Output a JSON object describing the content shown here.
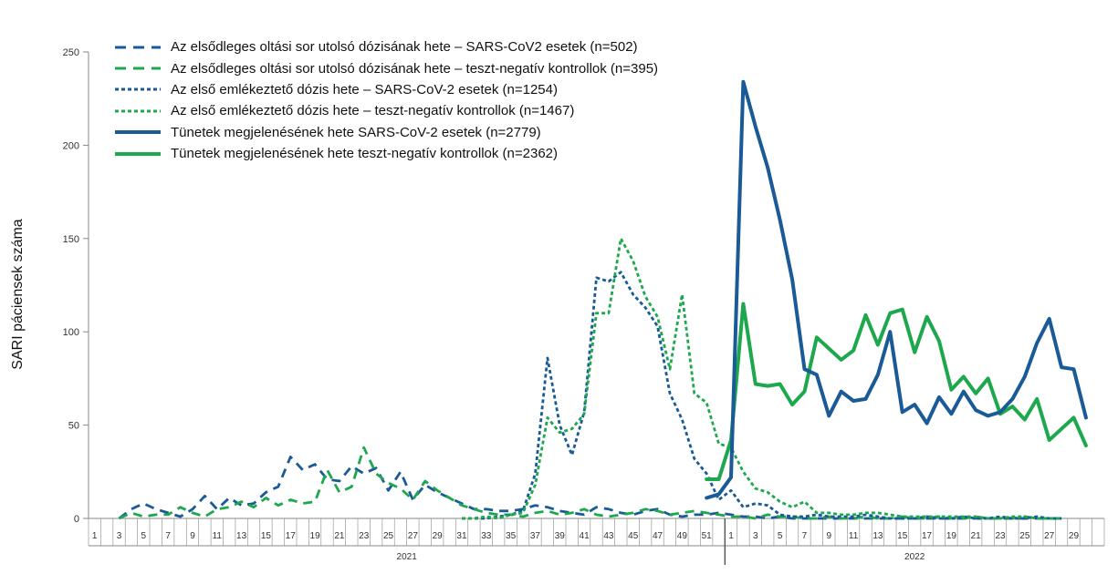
{
  "chart_data": {
    "type": "line",
    "title": "",
    "xlabel": "",
    "ylabel": "SARI páciensek száma",
    "ylim": [
      0,
      250
    ],
    "y_ticks": [
      "0",
      "50",
      "100",
      "150",
      "200",
      "250"
    ],
    "y_tick_values": [
      0,
      50,
      100,
      150,
      200,
      250
    ],
    "x_ticks_2021": [
      "1",
      "3",
      "5",
      "7",
      "9",
      "11",
      "13",
      "15",
      "17",
      "19",
      "21",
      "23",
      "25",
      "27",
      "29",
      "31",
      "33",
      "35",
      "37",
      "39",
      "41",
      "43",
      "45",
      "47",
      "49",
      "51"
    ],
    "x_ticks_2022": [
      "1",
      "3",
      "5",
      "7",
      "9",
      "11",
      "13",
      "15",
      "17",
      "19",
      "21",
      "23",
      "25",
      "27",
      "29"
    ],
    "year_labels": [
      "2021",
      "2022"
    ],
    "x_note": "x values are week indices: weeks 1-52 = 2021, 53 = 2022 week 1 ... 82 = 2022 week 30",
    "colors": {
      "blue": "#1a5a96",
      "green": "#1ea84e"
    },
    "series": [
      {
        "name": "Az elsődleges oltási sor utolsó dózisának hete – SARS-CoV2 esetek (n=502)",
        "color": "#1a5a96",
        "style": "dashed",
        "x": [
          3,
          4,
          5,
          6,
          7,
          8,
          9,
          10,
          11,
          12,
          13,
          14,
          15,
          16,
          17,
          18,
          19,
          20,
          21,
          22,
          23,
          24,
          25,
          26,
          27,
          28,
          29,
          30,
          31,
          32,
          33,
          34,
          35,
          36,
          37,
          38,
          39,
          40,
          41,
          42,
          43,
          44,
          45,
          46,
          47,
          48,
          49,
          50,
          51,
          52,
          53,
          54,
          55,
          56,
          57,
          58,
          59,
          60,
          61,
          62,
          63,
          64,
          65,
          66,
          67,
          68,
          69,
          70,
          71,
          72,
          73,
          74,
          75,
          76,
          77,
          78,
          79,
          80
        ],
        "values": [
          0,
          5,
          8,
          5,
          3,
          1,
          5,
          12,
          5,
          11,
          7,
          8,
          14,
          17,
          33,
          26,
          29,
          21,
          20,
          28,
          24,
          27,
          15,
          25,
          10,
          18,
          14,
          11,
          8,
          5,
          5,
          4,
          4,
          5,
          7,
          6,
          4,
          3,
          2,
          6,
          5,
          3,
          2,
          4,
          5,
          2,
          1,
          2,
          2,
          3,
          2,
          1,
          1,
          0,
          1,
          0,
          0,
          0,
          0,
          0,
          0,
          0,
          0,
          0,
          0,
          0,
          0,
          0,
          0,
          0,
          0,
          0,
          0,
          0,
          0,
          0,
          0,
          0
        ]
      },
      {
        "name": "Az elsődleges oltási sor utolsó dózisának hete – teszt-negatív kontrollok (n=395)",
        "color": "#1ea84e",
        "style": "dashed",
        "x": [
          3,
          4,
          5,
          6,
          7,
          8,
          9,
          10,
          11,
          12,
          13,
          14,
          15,
          16,
          17,
          18,
          19,
          20,
          21,
          22,
          23,
          24,
          25,
          26,
          27,
          28,
          29,
          30,
          31,
          32,
          33,
          34,
          35,
          36,
          37,
          38,
          39,
          40,
          41,
          42,
          43,
          44,
          45,
          46,
          47,
          48,
          49,
          50,
          51,
          52,
          53,
          54,
          55,
          56,
          57,
          58,
          59,
          60,
          61,
          62,
          63,
          64,
          65,
          66,
          67,
          68,
          69,
          70,
          71,
          72,
          73,
          74,
          75,
          76,
          77,
          78,
          79,
          80
        ],
        "values": [
          0,
          3,
          1,
          2,
          2,
          6,
          3,
          1,
          5,
          6,
          9,
          6,
          11,
          7,
          10,
          8,
          9,
          26,
          14,
          17,
          38,
          24,
          19,
          16,
          10,
          20,
          15,
          11,
          7,
          5,
          3,
          2,
          2,
          1,
          3,
          4,
          2,
          3,
          5,
          2,
          1,
          2,
          3,
          5,
          4,
          2,
          3,
          4,
          3,
          2,
          1,
          1,
          0,
          2,
          1,
          1,
          0,
          0,
          1,
          0,
          0,
          1,
          0,
          0,
          1,
          0,
          0,
          1,
          0,
          0,
          1,
          0,
          0,
          0,
          1,
          0,
          0,
          0
        ]
      },
      {
        "name": "Az első emlékeztető dózis hete – SARS-CoV-2 esetek (n=1254)",
        "color": "#1a5a96",
        "style": "dotted",
        "x": [
          31,
          32,
          33,
          34,
          35,
          36,
          37,
          38,
          39,
          40,
          41,
          42,
          43,
          44,
          45,
          46,
          47,
          48,
          49,
          50,
          51,
          52,
          53,
          54,
          55,
          56,
          57,
          58,
          59,
          60,
          61,
          62,
          63,
          64,
          65,
          66,
          67,
          68,
          69,
          70,
          71,
          72,
          73,
          74,
          75,
          76,
          77,
          78,
          79,
          80
        ],
        "values": [
          0,
          0,
          0,
          1,
          2,
          4,
          24,
          86,
          50,
          34,
          57,
          129,
          127,
          132,
          120,
          113,
          103,
          67,
          53,
          32,
          24,
          10,
          15,
          6,
          8,
          7,
          2,
          1,
          1,
          2,
          1,
          1,
          1,
          2,
          1,
          0,
          0,
          0,
          1,
          0,
          0,
          1,
          0,
          0,
          1,
          0,
          0,
          1,
          0,
          0
        ]
      },
      {
        "name": "Az első emlékeztető dózis hete – teszt-negatív kontrollok (n=1467)",
        "color": "#1ea84e",
        "style": "dotted",
        "x": [
          31,
          32,
          33,
          34,
          35,
          36,
          37,
          38,
          39,
          40,
          41,
          42,
          43,
          44,
          45,
          46,
          47,
          48,
          49,
          50,
          51,
          52,
          53,
          54,
          55,
          56,
          57,
          58,
          59,
          60,
          61,
          62,
          63,
          64,
          65,
          66,
          67,
          68,
          69,
          70,
          71,
          72,
          73,
          74,
          75,
          76,
          77,
          78,
          79,
          80
        ],
        "values": [
          0,
          0,
          1,
          0,
          2,
          3,
          18,
          54,
          46,
          48,
          56,
          110,
          110,
          150,
          138,
          119,
          108,
          80,
          120,
          67,
          62,
          40,
          38,
          25,
          16,
          14,
          9,
          6,
          9,
          3,
          3,
          2,
          2,
          3,
          3,
          2,
          1,
          1,
          1,
          1,
          1,
          1,
          1,
          0,
          0,
          1,
          1,
          0,
          0,
          0
        ]
      },
      {
        "name": "Tünetek megjelenésének hete SARS-CoV-2 esetek (n=2779)",
        "color": "#1a5a96",
        "style": "solid",
        "x": [
          51,
          52,
          53,
          54,
          55,
          56,
          57,
          58,
          59,
          60,
          61,
          62,
          63,
          64,
          65,
          66,
          67,
          68,
          69,
          70,
          71,
          72,
          73,
          74,
          75,
          76,
          77,
          78,
          79,
          80,
          81,
          82
        ],
        "values": [
          11,
          13,
          22,
          234,
          210,
          188,
          160,
          128,
          80,
          77,
          55,
          68,
          63,
          64,
          77,
          100,
          57,
          61,
          51,
          65,
          56,
          68,
          58,
          55,
          57,
          64,
          76,
          94,
          107,
          81,
          80,
          54
        ]
      },
      {
        "name": "Tünetek megjelenésének hete teszt-negatív kontrollok (n=2362)",
        "color": "#1ea84e",
        "style": "solid",
        "x": [
          51,
          52,
          53,
          54,
          55,
          56,
          57,
          58,
          59,
          60,
          61,
          62,
          63,
          64,
          65,
          66,
          67,
          68,
          69,
          70,
          71,
          72,
          73,
          74,
          75,
          76,
          77,
          78,
          79,
          80,
          81,
          82
        ],
        "values": [
          21,
          21,
          42,
          115,
          72,
          71,
          72,
          61,
          68,
          97,
          91,
          85,
          90,
          109,
          93,
          110,
          112,
          89,
          108,
          95,
          69,
          76,
          67,
          75,
          56,
          60,
          53,
          64,
          42,
          48,
          54,
          39
        ]
      }
    ]
  }
}
